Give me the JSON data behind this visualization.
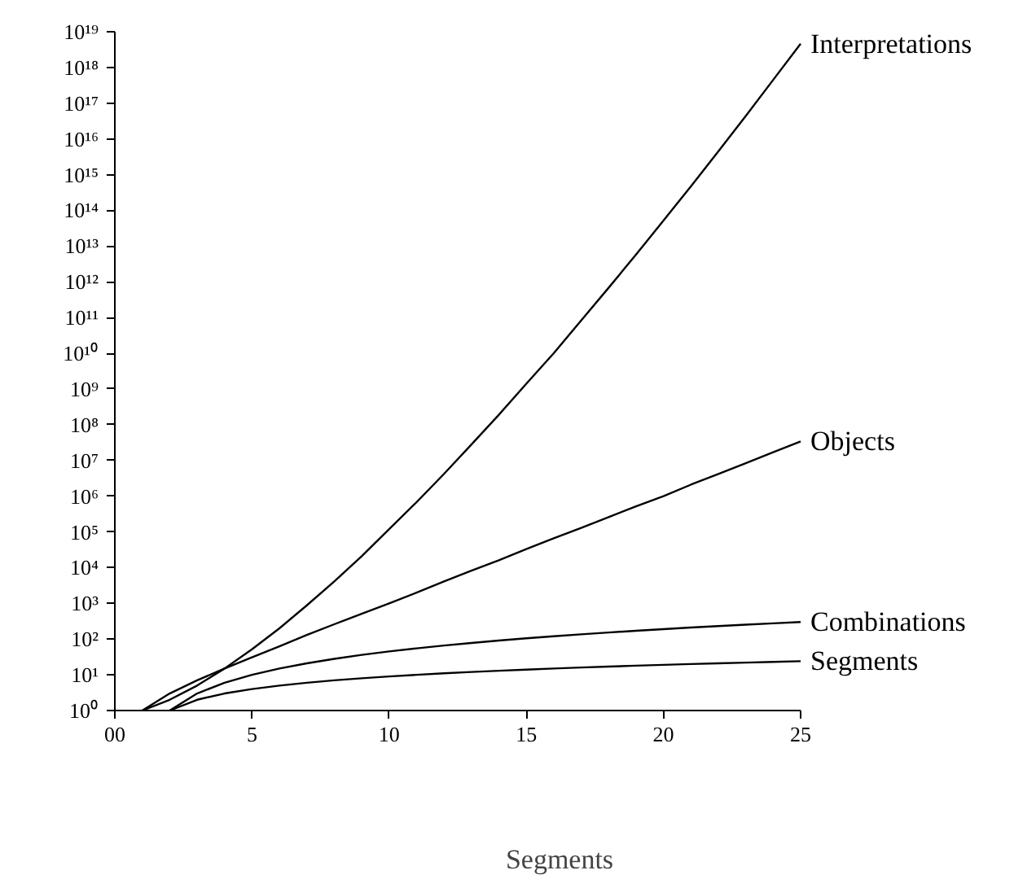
{
  "chart_data": {
    "type": "line",
    "xlabel": "Segments",
    "log": "y",
    "grid": false,
    "marker": "none",
    "line_style": "solid",
    "x": [
      1,
      2,
      3,
      4,
      5,
      6,
      7,
      8,
      9,
      10,
      11,
      12,
      13,
      14,
      15,
      16,
      17,
      18,
      19,
      20,
      21,
      22,
      23,
      24,
      25
    ],
    "xlim": [
      0,
      25
    ],
    "ylim": [
      1,
      1e+19
    ],
    "xticks": [
      {
        "value": 0,
        "label": "00"
      },
      5,
      10,
      15,
      20,
      25
    ],
    "yticks": [
      {
        "value": 1,
        "label": "10⁰"
      },
      {
        "value": 10.0,
        "label": "10¹"
      },
      {
        "value": 100.0,
        "label": "10²"
      },
      {
        "value": 1000.0,
        "label": "10³"
      },
      {
        "value": 10000.0,
        "label": "10⁴"
      },
      {
        "value": 100000.0,
        "label": "10⁵"
      },
      {
        "value": 1000000.0,
        "label": "10⁶"
      },
      {
        "value": 10000000.0,
        "label": "10⁷"
      },
      {
        "value": 100000000.0,
        "label": "10⁸"
      },
      {
        "value": 1000000000.0,
        "label": "10⁹"
      },
      {
        "value": 10000000000.0,
        "label": "10¹⁰"
      },
      {
        "value": 100000000000.0,
        "label": "10¹¹"
      },
      {
        "value": 1000000000000.0,
        "label": "10¹²"
      },
      {
        "value": 10000000000000.0,
        "label": "10¹³"
      },
      {
        "value": 100000000000000.0,
        "label": "10¹⁴"
      },
      {
        "value": 1000000000000000.0,
        "label": "10¹⁵"
      },
      {
        "value": 1e+16,
        "label": "10¹⁶"
      },
      {
        "value": 1e+17,
        "label": "10¹⁷"
      },
      {
        "value": 1e+18,
        "label": "10¹⁸"
      },
      {
        "value": 1e+19,
        "label": "10¹⁹"
      }
    ],
    "series": [
      {
        "name": "Interpretations",
        "color": "#000000",
        "values": [
          1,
          2,
          5,
          15,
          52,
          200,
          880,
          4100,
          21000,
          120000,
          680000,
          4200000,
          28000000,
          190000000.0,
          1400000000.0,
          10000000000.0,
          83000000000.0,
          680000000000.0,
          5800000000000.0,
          52000000000000.0,
          470000000000000.0,
          4500000000000000.0,
          4.4e+16,
          4.5e+17,
          4.6e+18
        ]
      },
      {
        "name": "Objects",
        "color": "#000000",
        "values": [
          1,
          3,
          7,
          15,
          31,
          63,
          130,
          260,
          510,
          1000,
          2000,
          4100,
          8200,
          16000,
          33000,
          66000,
          130000,
          260000,
          520000,
          1000000,
          2100000,
          4200000,
          8400000,
          17000000.0,
          34000000.0
        ]
      },
      {
        "name": "Combinations",
        "color": "#000000",
        "values": [
          null,
          1,
          3,
          6,
          10,
          15,
          21,
          28,
          36,
          45,
          55,
          66,
          78,
          91,
          105,
          120,
          136,
          153,
          171,
          190,
          210,
          231,
          253,
          276,
          300
        ]
      },
      {
        "name": "Segments",
        "color": "#000000",
        "values": [
          null,
          1,
          2,
          3,
          4,
          5,
          6,
          7,
          8,
          9,
          10,
          11,
          12,
          13,
          14,
          15,
          16,
          17,
          18,
          19,
          20,
          21,
          22,
          23,
          24
        ]
      }
    ]
  }
}
